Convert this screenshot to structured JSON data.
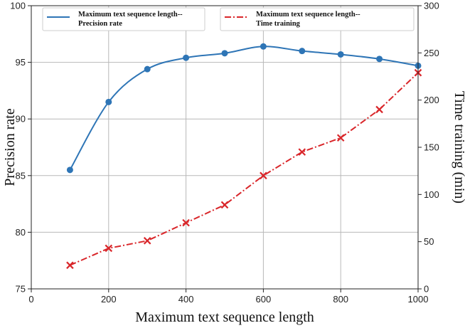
{
  "chart_data": {
    "type": "line",
    "x": [
      100,
      200,
      300,
      400,
      500,
      600,
      700,
      800,
      900,
      1000
    ],
    "xlabel": "Maximum text sequence length",
    "xlim": [
      0,
      1000
    ],
    "xticks": [
      0,
      200,
      400,
      600,
      800,
      1000
    ],
    "grid": true,
    "axes": {
      "left": {
        "label": "Precision rate",
        "lim": [
          75,
          100
        ],
        "ticks": [
          75,
          80,
          85,
          90,
          95,
          100
        ]
      },
      "right": {
        "label": "Time training (min)",
        "lim": [
          0,
          300
        ],
        "ticks": [
          0,
          50,
          100,
          150,
          200,
          250,
          300
        ]
      }
    },
    "series": [
      {
        "name": "Maximum text sequence length--\nPrecision rate",
        "axis": "left",
        "values": [
          85.5,
          91.5,
          94.4,
          95.4,
          95.8,
          96.4,
          96.0,
          95.7,
          95.3,
          94.7
        ],
        "color": "#2e75b6",
        "style": "solid",
        "marker": "circle",
        "smooth": true
      },
      {
        "name": "Maximum text sequence length--\nTime training",
        "axis": "right",
        "values": [
          25,
          43,
          51,
          70,
          89,
          120,
          145,
          160,
          190,
          229
        ],
        "color": "#d9262a",
        "style": "dash-dot",
        "marker": "x",
        "smooth": false
      }
    ],
    "legend": [
      {
        "position": "top-left",
        "series": 0
      },
      {
        "position": "top-right",
        "series": 1
      }
    ]
  }
}
